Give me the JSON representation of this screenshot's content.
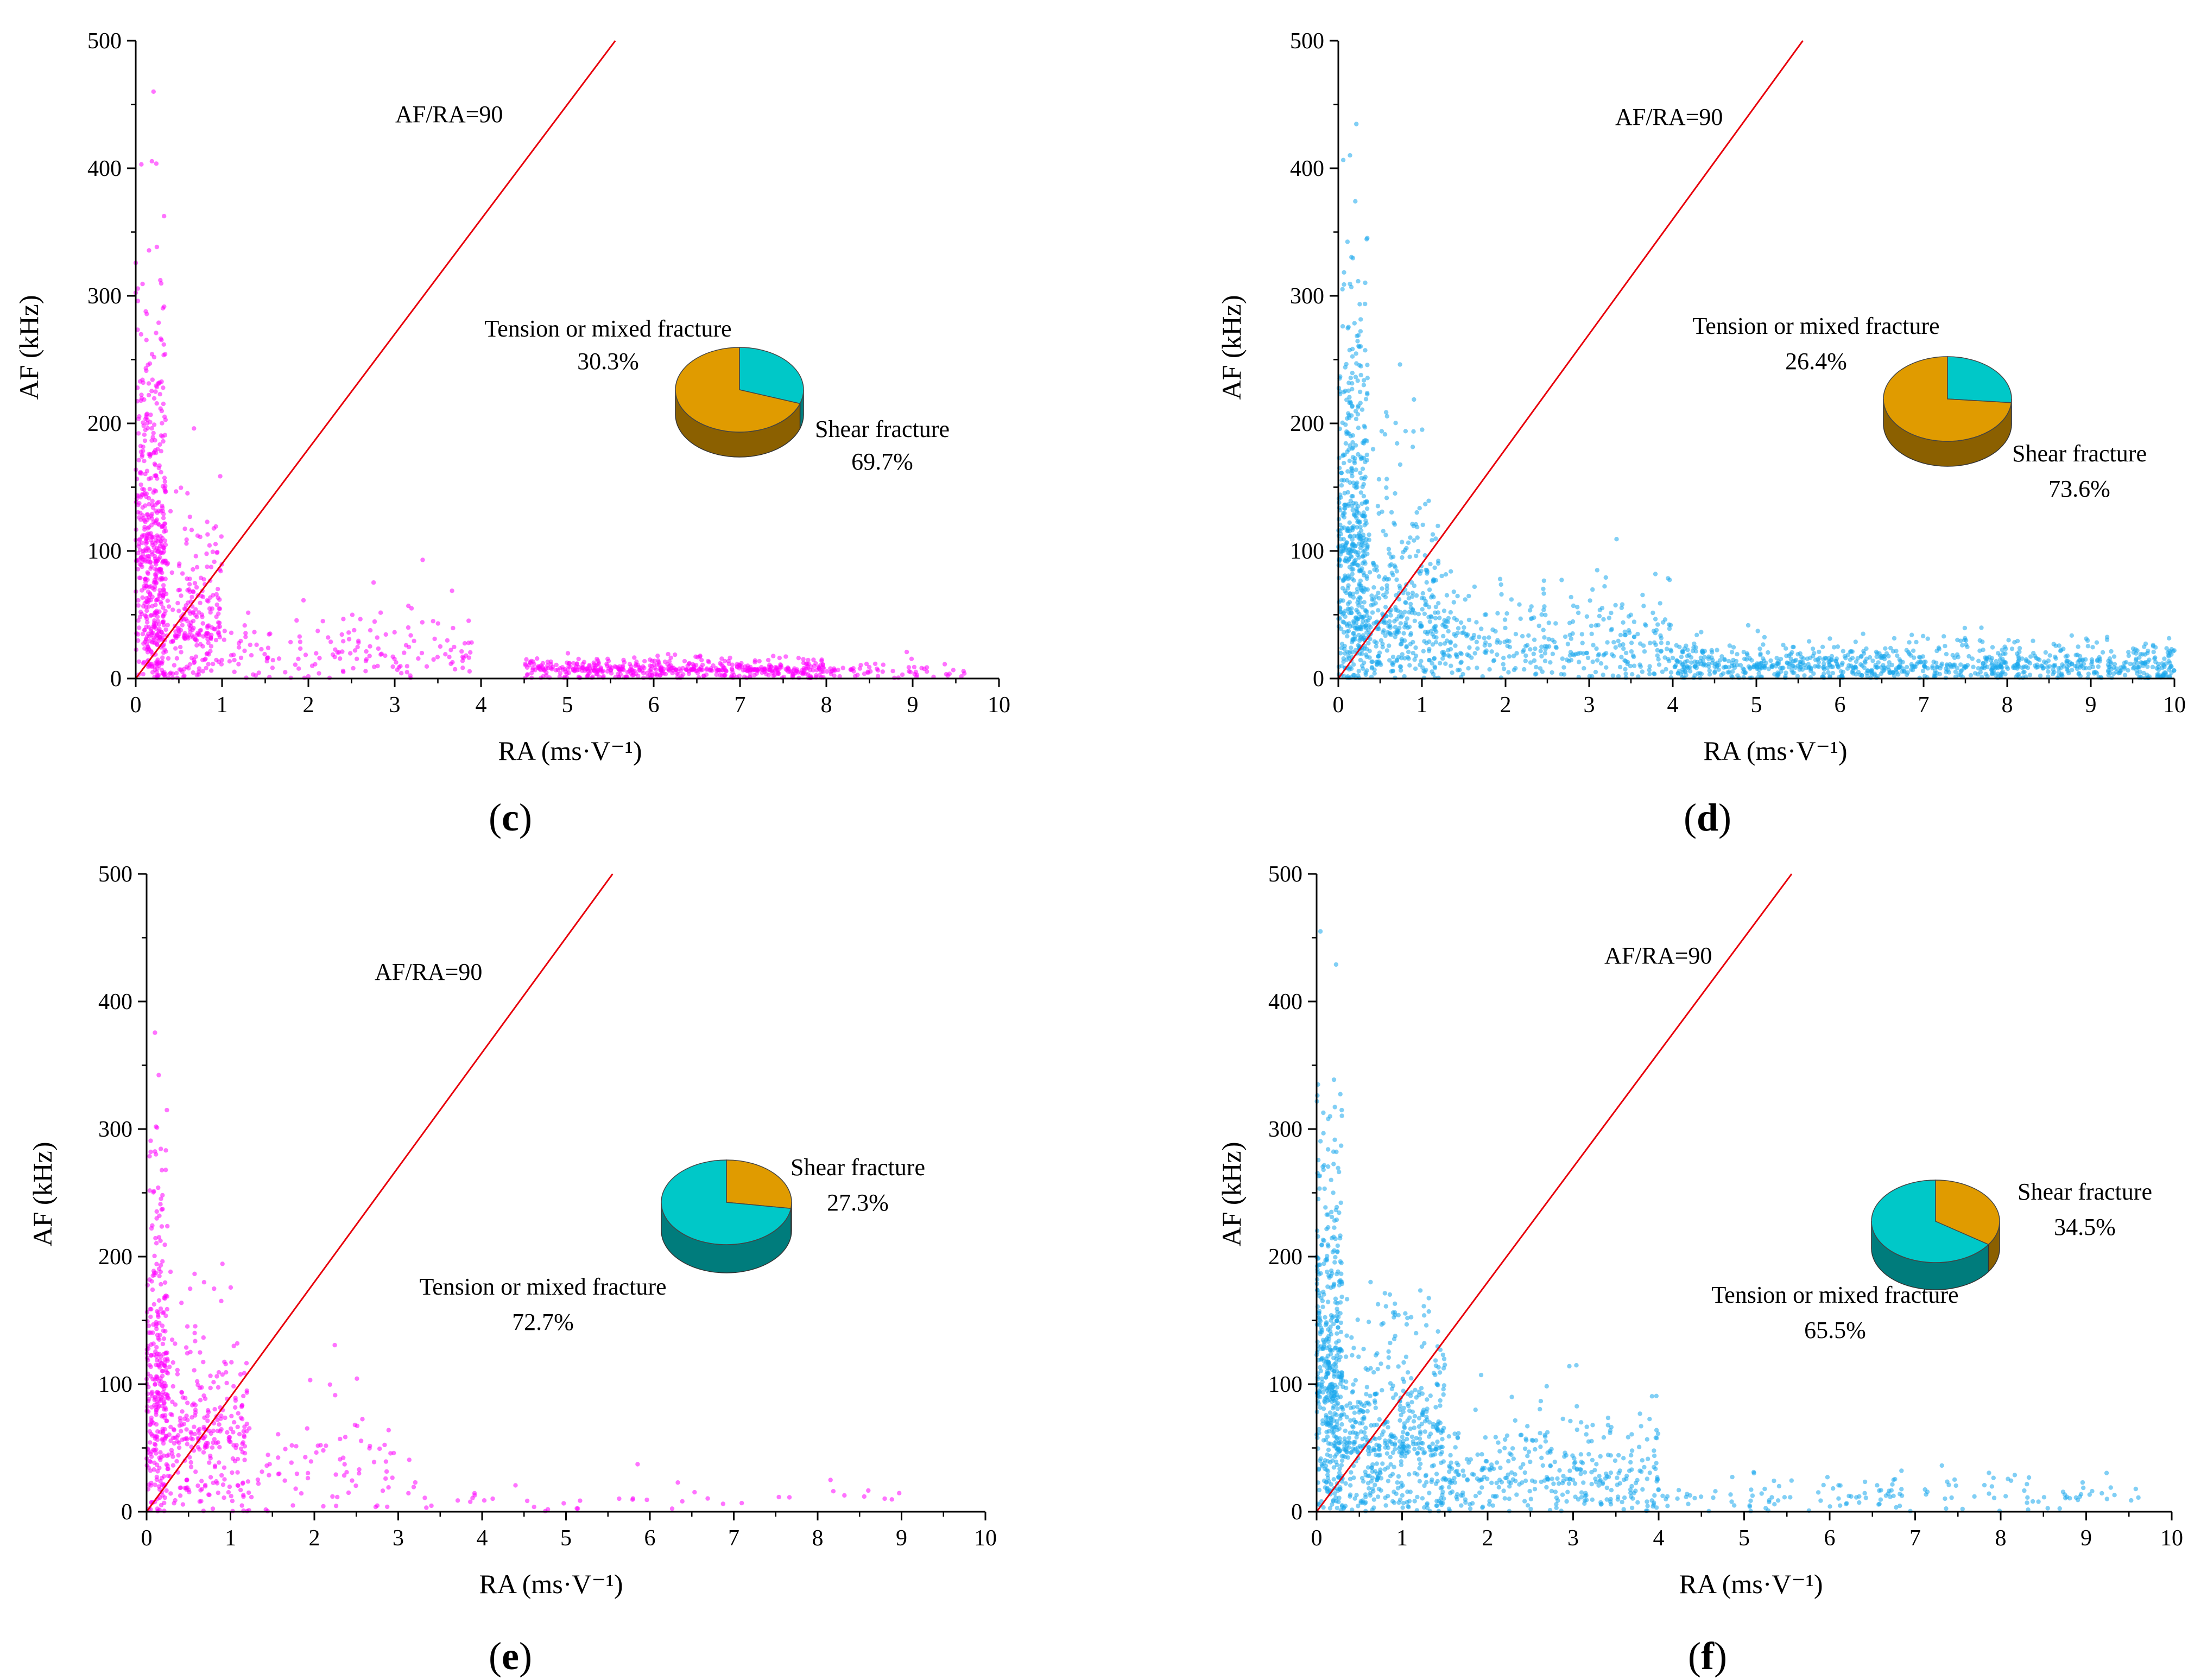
{
  "chart_data": [
    {
      "type": "scatter",
      "panel_label": "c",
      "xlabel": "RA (ms·V⁻¹)",
      "ylabel": "AF (kHz)",
      "xlim": [
        0,
        10
      ],
      "ylim": [
        0,
        500
      ],
      "x_ticks": [
        "0",
        "1",
        "2",
        "3",
        "4",
        "5",
        "6",
        "7",
        "8",
        "9",
        "10"
      ],
      "y_ticks": [
        "0",
        "100",
        "200",
        "300",
        "400",
        "500"
      ],
      "point_color": "#ff00ff",
      "reference_line": {
        "label": "AF/RA=90",
        "slope": 90,
        "color": "#e8000b"
      },
      "pie": {
        "slices": [
          {
            "name": "Tension or mixed fracture",
            "value": 30.3,
            "label": "30.3%",
            "color": "#00c8c8"
          },
          {
            "name": "Shear fracture",
            "value": 69.7,
            "label": "69.7%",
            "color": "#e09b00"
          }
        ]
      },
      "point_clusters": [
        {
          "x_range": [
            0,
            0.35
          ],
          "y_mean": 90,
          "y_spread": 130,
          "count": 420,
          "description": "dense near-vertical band at low RA"
        },
        {
          "x_range": [
            0.1,
            1.0
          ],
          "y_mean": 30,
          "y_spread": 60,
          "count": 350
        },
        {
          "x_range": [
            1.0,
            4.0
          ],
          "y_mean": 15,
          "y_spread": 30,
          "count": 160
        },
        {
          "x_range": [
            4.5,
            8.0
          ],
          "y_mean": 6,
          "y_spread": 6,
          "count": 500,
          "description": "dense band near AF≈5"
        },
        {
          "x_range": [
            8.0,
            9.6
          ],
          "y_mean": 5,
          "y_spread": 6,
          "count": 60
        }
      ]
    },
    {
      "type": "scatter",
      "panel_label": "d",
      "xlabel": "RA (ms·V⁻¹)",
      "ylabel": "AF (kHz)",
      "xlim": [
        0,
        10
      ],
      "ylim": [
        0,
        500
      ],
      "x_ticks": [
        "0",
        "1",
        "2",
        "3",
        "4",
        "5",
        "6",
        "7",
        "8",
        "9",
        "10"
      ],
      "y_ticks": [
        "0",
        "100",
        "200",
        "300",
        "400",
        "500"
      ],
      "point_color": "#1aa7ec",
      "reference_line": {
        "label": "AF/RA=90",
        "slope": 90,
        "color": "#e8000b"
      },
      "pie": {
        "slices": [
          {
            "name": "Tension or mixed fracture",
            "value": 26.4,
            "label": "26.4%",
            "color": "#00c8c8"
          },
          {
            "name": "Shear fracture",
            "value": 73.6,
            "label": "73.6%",
            "color": "#e09b00"
          }
        ]
      },
      "point_clusters": [
        {
          "x_range": [
            0,
            0.35
          ],
          "y_mean": 90,
          "y_spread": 130,
          "count": 420
        },
        {
          "x_range": [
            0.1,
            1.2
          ],
          "y_mean": 35,
          "y_spread": 70,
          "count": 450
        },
        {
          "x_range": [
            1.2,
            4.0
          ],
          "y_mean": 18,
          "y_spread": 35,
          "count": 350
        },
        {
          "x_range": [
            4.0,
            10.0
          ],
          "y_mean": 8,
          "y_spread": 12,
          "count": 900,
          "description": "dense band near AF≈5–15"
        }
      ]
    },
    {
      "type": "scatter",
      "panel_label": "e",
      "xlabel": "RA (ms·V⁻¹)",
      "ylabel": "AF (kHz)",
      "xlim": [
        0,
        10
      ],
      "ylim": [
        0,
        500
      ],
      "x_ticks": [
        "0",
        "1",
        "2",
        "3",
        "4",
        "5",
        "6",
        "7",
        "8",
        "9",
        "10"
      ],
      "y_ticks": [
        "0",
        "100",
        "200",
        "300",
        "400",
        "500"
      ],
      "point_color": "#ff00ff",
      "reference_line": {
        "label": "AF/RA=90",
        "slope": 90,
        "color": "#e8000b"
      },
      "pie": {
        "slices": [
          {
            "name": "Shear fracture",
            "value": 27.3,
            "label": "27.3%",
            "color": "#e09b00"
          },
          {
            "name": "Tension or mixed fracture",
            "value": 72.7,
            "label": "72.7%",
            "color": "#00c8c8"
          }
        ]
      },
      "point_clusters": [
        {
          "x_range": [
            0,
            0.25
          ],
          "y_mean": 80,
          "y_spread": 120,
          "count": 260
        },
        {
          "x_range": [
            0.1,
            1.2
          ],
          "y_mean": 50,
          "y_spread": 55,
          "count": 320
        },
        {
          "x_range": [
            1.2,
            3.0
          ],
          "y_mean": 25,
          "y_spread": 35,
          "count": 80
        },
        {
          "x_range": [
            3.0,
            9.5
          ],
          "y_mean": 8,
          "y_spread": 12,
          "count": 45
        }
      ]
    },
    {
      "type": "scatter",
      "panel_label": "f",
      "xlabel": "RA (ms·V⁻¹)",
      "ylabel": "AF (kHz)",
      "xlim": [
        0,
        10
      ],
      "ylim": [
        0,
        500
      ],
      "x_ticks": [
        "0",
        "1",
        "2",
        "3",
        "4",
        "5",
        "6",
        "7",
        "8",
        "9",
        "10"
      ],
      "y_ticks": [
        "0",
        "100",
        "200",
        "300",
        "400",
        "500"
      ],
      "point_color": "#1aa7ec",
      "reference_line": {
        "label": "AF/RA=90",
        "slope": 90,
        "color": "#e8000b"
      },
      "pie": {
        "slices": [
          {
            "name": "Shear fracture",
            "value": 34.5,
            "label": "34.5%",
            "color": "#e09b00"
          },
          {
            "name": "Tension or mixed fracture",
            "value": 65.5,
            "label": "65.5%",
            "color": "#00c8c8"
          }
        ]
      },
      "point_clusters": [
        {
          "x_range": [
            0,
            0.3
          ],
          "y_mean": 90,
          "y_spread": 130,
          "count": 380
        },
        {
          "x_range": [
            0.1,
            1.5
          ],
          "y_mean": 45,
          "y_spread": 60,
          "count": 600
        },
        {
          "x_range": [
            1.5,
            4.0
          ],
          "y_mean": 22,
          "y_spread": 35,
          "count": 350
        },
        {
          "x_range": [
            4.0,
            9.7
          ],
          "y_mean": 10,
          "y_spread": 12,
          "count": 140
        }
      ]
    }
  ]
}
